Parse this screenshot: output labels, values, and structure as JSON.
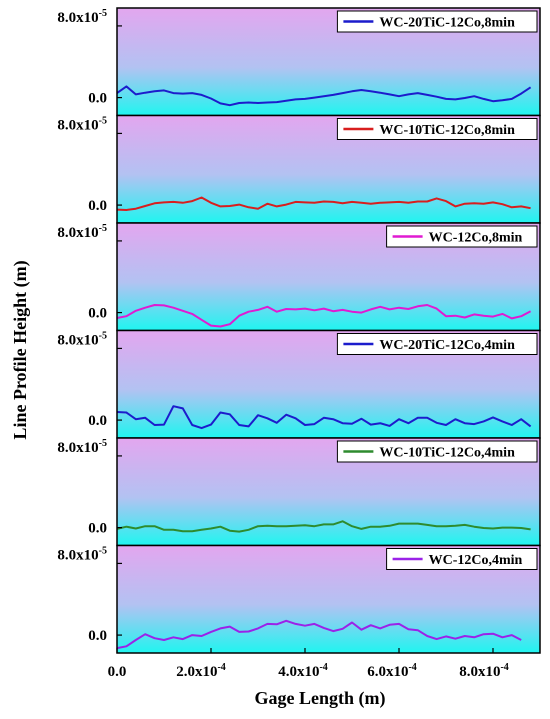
{
  "chart_data": {
    "type": "line",
    "xlabel": "Gage Length (m)",
    "ylabel": "Line Profile Height (m)",
    "x_tick_labels": [
      "0.0",
      "2.0x10",
      "4.0x10",
      "6.0x10",
      "8.0x10"
    ],
    "x_tick_exponent": "-4",
    "x_tick_values": [
      0,
      0.0002,
      0.0004,
      0.0006,
      0.0008
    ],
    "xlim": [
      0,
      0.0009
    ],
    "y_tick_top_label": "8.0x10",
    "y_tick_top_exponent": "-5",
    "y_tick_zero_label": "0.0",
    "ylim": [
      -2e-05,
      0.0001
    ],
    "colors": {
      "bg_top": "#e3a6ef",
      "bg_bottom": "#1ff5f0",
      "frame": "#000000"
    },
    "panels": [
      {
        "name": "WC-20TiC-12Co,8min",
        "color": "#1c1ccc",
        "x": [
          0,
          2e-05,
          4e-05,
          6e-05,
          8e-05,
          0.0001,
          0.00012,
          0.00014,
          0.00016,
          0.00018,
          0.0002,
          0.00022,
          0.00024,
          0.00026,
          0.00028,
          0.0003,
          0.00032,
          0.00034,
          0.00036,
          0.00038,
          0.0004,
          0.00042,
          0.00044,
          0.00046,
          0.00048,
          0.0005,
          0.00052,
          0.00054,
          0.00056,
          0.00058,
          0.0006,
          0.00062,
          0.00064,
          0.00066,
          0.00068,
          0.0007,
          0.00072,
          0.00074,
          0.00076,
          0.00078,
          0.0008,
          0.00082,
          0.00084,
          0.00086,
          0.00088
        ],
        "y": [
          5e-06,
          1.25e-05,
          3.5e-06,
          5.5e-06,
          7e-06,
          8e-06,
          5e-06,
          4.5e-06,
          5e-06,
          3e-06,
          -1e-06,
          -6.5e-06,
          -8.5e-06,
          -6e-06,
          -5.5e-06,
          -6e-06,
          -5.5e-06,
          -5e-06,
          -3.5e-06,
          -2e-06,
          -1.5e-06,
          0,
          1.5e-06,
          3e-06,
          5e-06,
          7e-06,
          8.5e-06,
          7e-06,
          5.5e-06,
          3.5e-06,
          1.5e-06,
          3.5e-06,
          5e-06,
          3e-06,
          1e-06,
          -1.5e-06,
          -2e-06,
          -5e-07,
          1.5e-06,
          -1.5e-06,
          -4e-06,
          -3e-06,
          -1.5e-06,
          4.5e-06,
          1.15e-05
        ]
      },
      {
        "name": "WC-10TiC-12Co,8min",
        "color": "#d81e1e",
        "x": [
          0,
          2e-05,
          4e-05,
          6e-05,
          8e-05,
          0.0001,
          0.00012,
          0.00014,
          0.00016,
          0.00018,
          0.0002,
          0.00022,
          0.00024,
          0.00026,
          0.00028,
          0.0003,
          0.00032,
          0.00034,
          0.00036,
          0.00038,
          0.0004,
          0.00042,
          0.00044,
          0.00046,
          0.00048,
          0.0005,
          0.00052,
          0.00054,
          0.00056,
          0.00058,
          0.0006,
          0.00062,
          0.00064,
          0.00066,
          0.00068,
          0.0007,
          0.00072,
          0.00074,
          0.00076,
          0.00078,
          0.0008,
          0.00082,
          0.00084,
          0.00086,
          0.00088
        ],
        "y": [
          -5e-06,
          -5.5e-06,
          -4e-06,
          -1e-06,
          2e-06,
          3e-06,
          3.5e-06,
          2.5e-06,
          4.5e-06,
          8.5e-06,
          2.5e-06,
          -1.5e-06,
          -1e-06,
          5e-07,
          -2.5e-06,
          -4e-06,
          1.5e-06,
          -1.5e-06,
          5e-07,
          3.5e-06,
          3e-06,
          2.5e-06,
          4e-06,
          3.5e-06,
          2e-06,
          3.5e-06,
          2.5e-06,
          1.5e-06,
          2.5e-06,
          3e-06,
          3.5e-06,
          2.5e-06,
          4e-06,
          4e-06,
          7.5e-06,
          4.5e-06,
          -1.5e-06,
          1.5e-06,
          2e-06,
          1.5e-06,
          3e-06,
          1e-06,
          -2.5e-06,
          -1.5e-06,
          -3.5e-06
        ]
      },
      {
        "name": "WC-12Co,8min",
        "color": "#e01ad2",
        "x": [
          0,
          2e-05,
          4e-05,
          6e-05,
          8e-05,
          0.0001,
          0.00012,
          0.00014,
          0.00016,
          0.00018,
          0.0002,
          0.00022,
          0.00024,
          0.00026,
          0.00028,
          0.0003,
          0.00032,
          0.00034,
          0.00036,
          0.00038,
          0.0004,
          0.00042,
          0.00044,
          0.00046,
          0.00048,
          0.0005,
          0.00052,
          0.00054,
          0.00056,
          0.00058,
          0.0006,
          0.00062,
          0.00064,
          0.00066,
          0.00068,
          0.0007,
          0.00072,
          0.00074,
          0.00076,
          0.00078,
          0.0008,
          0.00082,
          0.00084,
          0.00086,
          0.00088
        ],
        "y": [
          -6e-06,
          -4e-06,
          2e-06,
          5.5e-06,
          8.5e-06,
          8e-06,
          5.5e-06,
          2e-06,
          -1.5e-06,
          -8e-06,
          -1.45e-05,
          -1.55e-05,
          -1.3e-05,
          -3.5e-06,
          1e-06,
          3e-06,
          6.5e-06,
          1e-06,
          4e-06,
          3.5e-06,
          4.5e-06,
          2.5e-06,
          4.5e-06,
          1.5e-06,
          3e-06,
          1e-06,
          0,
          3.5e-06,
          6.5e-06,
          3.5e-06,
          5.5e-06,
          4e-06,
          7e-06,
          8.5e-06,
          4.5e-06,
          -4e-06,
          -3.5e-06,
          -5.5e-06,
          -2e-06,
          -3.5e-06,
          -4.5e-06,
          -1.5e-06,
          -6.5e-06,
          -4e-06,
          1.5e-06
        ]
      },
      {
        "name": "WC-20TiC-12Co,4min",
        "color": "#1c1ccc",
        "x": [
          0,
          2e-05,
          4e-05,
          6e-05,
          8e-05,
          0.0001,
          0.00012,
          0.00014,
          0.00016,
          0.00018,
          0.0002,
          0.00022,
          0.00024,
          0.00026,
          0.00028,
          0.0003,
          0.00032,
          0.00034,
          0.00036,
          0.00038,
          0.0004,
          0.00042,
          0.00044,
          0.00046,
          0.00048,
          0.0005,
          0.00052,
          0.00054,
          0.00056,
          0.00058,
          0.0006,
          0.00062,
          0.00064,
          0.00066,
          0.00068,
          0.0007,
          0.00072,
          0.00074,
          0.00076,
          0.00078,
          0.0008,
          0.00082,
          0.00084,
          0.00086,
          0.00088
        ],
        "y": [
          9e-06,
          8.5e-06,
          1e-06,
          2.5e-06,
          -5.5e-06,
          -5e-06,
          1.55e-05,
          1.3e-05,
          -5.5e-06,
          -9e-06,
          -5e-06,
          8.5e-06,
          6.5e-06,
          -5.5e-06,
          -7e-06,
          5.5e-06,
          2e-06,
          -3e-06,
          6e-06,
          2e-06,
          -5.5e-06,
          -4.5e-06,
          2.5e-06,
          1e-06,
          -3.5e-06,
          -4e-06,
          1.5e-06,
          -5e-06,
          -3.5e-06,
          -6.5e-06,
          1e-06,
          -3.5e-06,
          2.5e-06,
          2.5e-06,
          -3e-06,
          -5.5e-06,
          1e-06,
          -3.5e-06,
          -4.5e-06,
          -1.5e-06,
          3e-06,
          -1.5e-06,
          -5.5e-06,
          1e-06,
          -7e-06
        ]
      },
      {
        "name": "WC-10TiC-12Co,4min",
        "color": "#2e8b2e",
        "x": [
          0,
          2e-05,
          4e-05,
          6e-05,
          8e-05,
          0.0001,
          0.00012,
          0.00014,
          0.00016,
          0.00018,
          0.0002,
          0.00022,
          0.00024,
          0.00026,
          0.00028,
          0.0003,
          0.00032,
          0.00034,
          0.00036,
          0.00038,
          0.0004,
          0.00042,
          0.00044,
          0.00046,
          0.00048,
          0.0005,
          0.00052,
          0.00054,
          0.00056,
          0.00058,
          0.0006,
          0.00062,
          0.00064,
          0.00066,
          0.00068,
          0.0007,
          0.00072,
          0.00074,
          0.00076,
          0.00078,
          0.0008,
          0.00082,
          0.00084,
          0.00086,
          0.00088
        ],
        "y": [
          -1.5e-06,
          1e-06,
          -1e-06,
          1.5e-06,
          1.5e-06,
          -2.5e-06,
          -2.5e-06,
          -4e-06,
          -4e-06,
          -2.5e-06,
          -1e-06,
          1e-06,
          -3.5e-06,
          -4.5e-06,
          -2.5e-06,
          1.5e-06,
          2e-06,
          1.5e-06,
          1.5e-06,
          2e-06,
          2.5e-06,
          1.5e-06,
          3.5e-06,
          3.5e-06,
          7e-06,
          1.5e-06,
          -1.5e-06,
          1e-06,
          1e-06,
          2e-06,
          4.5e-06,
          4.5e-06,
          4.5e-06,
          3e-06,
          1.5e-06,
          1.5e-06,
          2e-06,
          3e-06,
          1e-06,
          -5e-07,
          -1e-06,
          0,
          0,
          -5e-07,
          -2e-06
        ]
      },
      {
        "name": "WC-12Co,4min",
        "color": "#9b22e8",
        "x": [
          0,
          2e-05,
          4e-05,
          6e-05,
          8e-05,
          0.0001,
          0.00012,
          0.00014,
          0.00016,
          0.00018,
          0.0002,
          0.00022,
          0.00024,
          0.00026,
          0.00028,
          0.0003,
          0.00032,
          0.00034,
          0.00036,
          0.00038,
          0.0004,
          0.00042,
          0.00044,
          0.00046,
          0.00048,
          0.0005,
          0.00052,
          0.00054,
          0.00056,
          0.00058,
          0.0006,
          0.00062,
          0.00064,
          0.00066,
          0.00068,
          0.0007,
          0.00072,
          0.00074,
          0.00076,
          0.00078,
          0.0008,
          0.00082,
          0.00084,
          0.00086
        ],
        "y": [
          -1.45e-05,
          -1.25e-05,
          -5.5e-06,
          1e-06,
          -3.5e-06,
          -5.5e-06,
          -2.5e-06,
          -4.5e-06,
          0,
          -1e-06,
          3.5e-06,
          7.5e-06,
          9.5e-06,
          3.5e-06,
          4e-06,
          7.5e-06,
          1.25e-05,
          1.2e-05,
          1.6e-05,
          1.25e-05,
          1.05e-05,
          1.25e-05,
          8e-06,
          4.5e-06,
          7e-06,
          1.4e-05,
          6e-06,
          1.1e-05,
          7.5e-06,
          1.15e-05,
          1.25e-05,
          6.5e-06,
          5.5e-06,
          -1e-06,
          -4.5e-06,
          -1.5e-06,
          -4e-06,
          -1e-06,
          -2.5e-06,
          1e-06,
          1.5e-06,
          -2.5e-06,
          0,
          -5.5e-06
        ]
      }
    ]
  }
}
